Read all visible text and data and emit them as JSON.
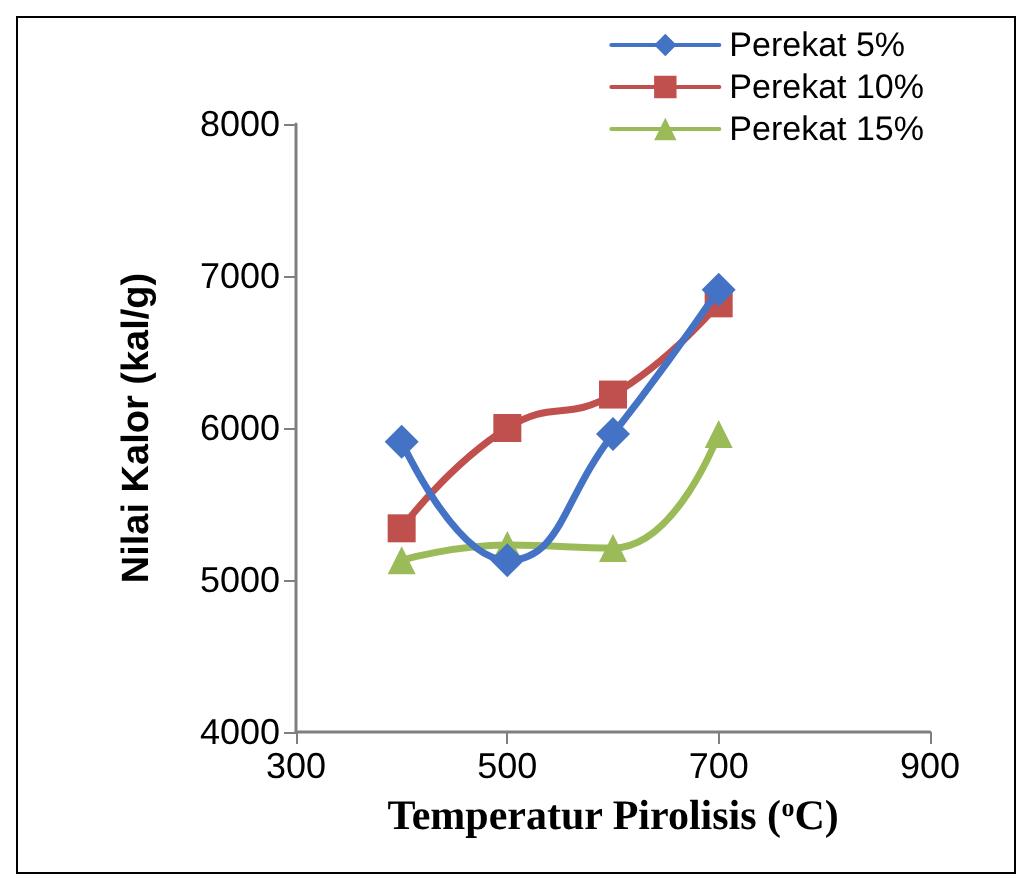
{
  "chart_data": {
    "type": "line",
    "xlabel": "Temperatur Pirolisis ($^{o}$C)",
    "ylabel": "Nilai Kalor (kal/g)",
    "x": [
      400,
      500,
      600,
      700
    ],
    "xlim": [
      300,
      900
    ],
    "xticks": [
      300,
      500,
      700,
      900
    ],
    "ylim": [
      4000,
      8000
    ],
    "yticks": [
      4000,
      5000,
      6000,
      7000,
      8000
    ],
    "grid": false,
    "legend": "top right",
    "series": [
      {
        "name": "Perekat 5%",
        "color": "#4472c4",
        "marker": "diamond",
        "values": [
          5910,
          5130,
          5960,
          6910
        ]
      },
      {
        "name": "Perekat 10%",
        "color": "#c0504d",
        "marker": "square",
        "values": [
          5340,
          6000,
          6220,
          6820
        ]
      },
      {
        "name": "Perekat 15%",
        "color": "#9bbb59",
        "marker": "triangle",
        "values": [
          5130,
          5230,
          5210,
          5960
        ]
      }
    ]
  }
}
